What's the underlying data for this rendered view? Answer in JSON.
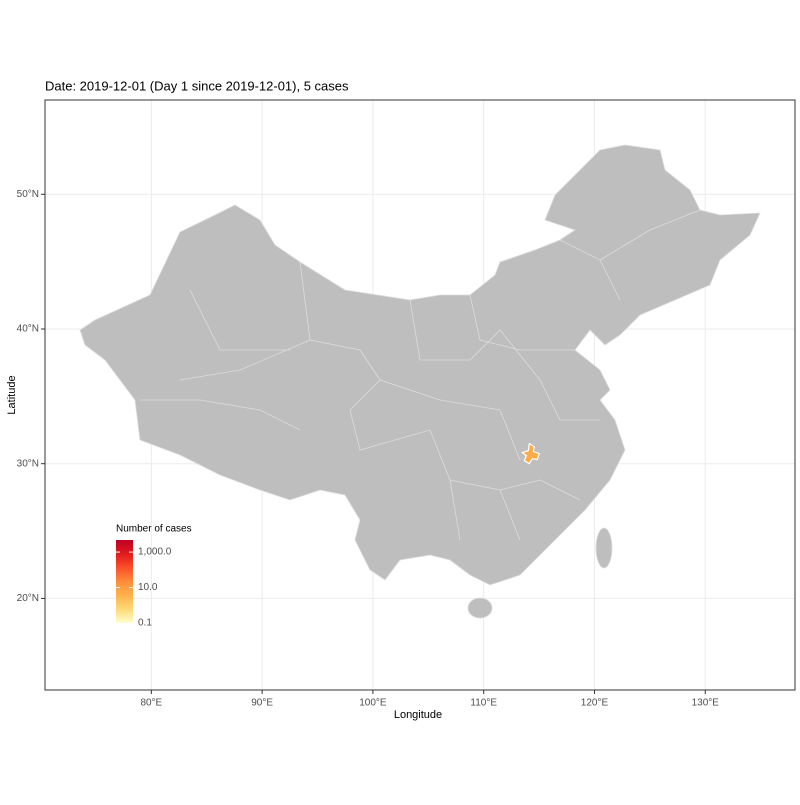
{
  "chart_data": {
    "type": "choropleth",
    "title": "Date: 2019-12-01 (Day 1 since 2019-12-01), 5 cases",
    "x_label": "Longitude",
    "y_label": "Latitude",
    "xlim": [
      70.4,
      138.1
    ],
    "ylim": [
      13.2,
      57.0
    ],
    "xticks": [
      {
        "value": 80,
        "label": "80°E"
      },
      {
        "value": 90,
        "label": "90°E"
      },
      {
        "value": 100,
        "label": "100°E"
      },
      {
        "value": 110,
        "label": "110°E"
      },
      {
        "value": 120,
        "label": "120°E"
      },
      {
        "value": 130,
        "label": "130°E"
      }
    ],
    "yticks": [
      {
        "value": 20,
        "label": "20°N"
      },
      {
        "value": 30,
        "label": "30°N"
      },
      {
        "value": 40,
        "label": "40°N"
      },
      {
        "value": 50,
        "label": "50°N"
      }
    ],
    "grid": true,
    "highlight": {
      "x": 114.3,
      "y": 30.6,
      "value": 5
    },
    "legend": {
      "title": "Number of cases",
      "log_scale": true,
      "limits": [
        0.1,
        4800
      ],
      "ticks": [
        {
          "value": 0.1,
          "label": "0.1"
        },
        {
          "value": 10,
          "label": "10.0"
        },
        {
          "value": 1000,
          "label": "1,000.0"
        }
      ],
      "colors": [
        "#FFFFCC",
        "#FED976",
        "#FEB24C",
        "#FD8D3C",
        "#FC4E2A",
        "#E31A1C",
        "#BD0026"
      ]
    }
  }
}
